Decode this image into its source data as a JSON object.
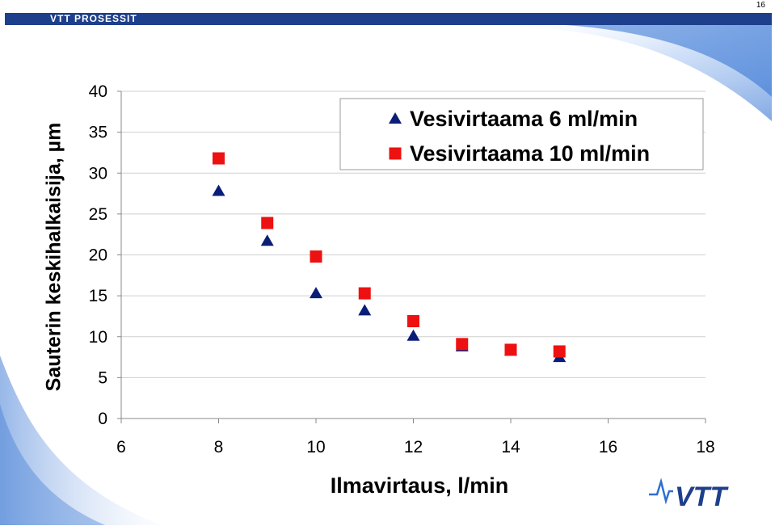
{
  "header": {
    "title": "VTT PROSESSIT",
    "page_number": "16"
  },
  "colors": {
    "header_bar": "#1e3f8c",
    "series_6": "#0a1e78",
    "series_10": "#ee1111",
    "decor_blue": "#2e6fd1"
  },
  "logo": {
    "text": "VTT",
    "icon": "vtt-logo-icon"
  },
  "chart_data": {
    "type": "scatter",
    "xlabel": "Ilmavirtaus, l/min",
    "ylabel": "Sauterin keskihalkaisija, µm",
    "xlim": [
      6,
      18
    ],
    "ylim": [
      0,
      40
    ],
    "x_ticks": [
      6,
      8,
      10,
      12,
      14,
      16,
      18
    ],
    "y_ticks": [
      0,
      5,
      10,
      15,
      20,
      25,
      30,
      35,
      40
    ],
    "grid": "horizontal",
    "legend_position": "top-right",
    "series": [
      {
        "name": "Vesivirtaama 6 ml/min",
        "marker": "triangle",
        "x": [
          8,
          9,
          10,
          11,
          12,
          13,
          14,
          15
        ],
        "y": [
          27.8,
          21.7,
          15.3,
          13.2,
          10.1,
          8.8,
          8.3,
          7.5
        ]
      },
      {
        "name": "Vesivirtaama 10 ml/min",
        "marker": "square",
        "x": [
          8,
          9,
          10,
          11,
          12,
          13,
          14,
          15
        ],
        "y": [
          31.8,
          23.9,
          19.8,
          15.3,
          11.9,
          9.1,
          8.4,
          8.2
        ]
      }
    ]
  }
}
